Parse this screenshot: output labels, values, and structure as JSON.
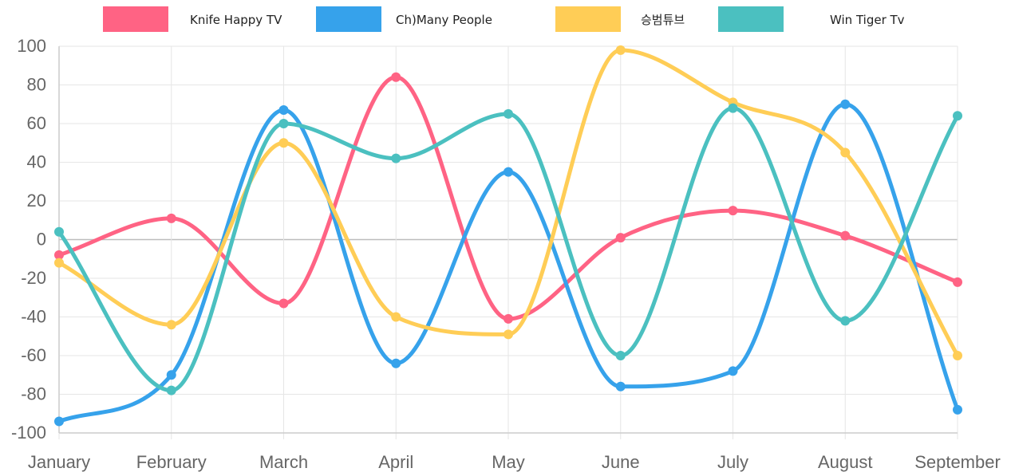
{
  "chart_data": {
    "type": "line",
    "categories": [
      "January",
      "February",
      "March",
      "April",
      "May",
      "June",
      "July",
      "August",
      "September"
    ],
    "ylim": [
      -100,
      100
    ],
    "yticks": [
      100,
      80,
      60,
      40,
      20,
      0,
      -20,
      -40,
      -60,
      -80,
      -100
    ],
    "grid": true,
    "curve": "smooth",
    "legend_position": "top",
    "series": [
      {
        "name": "Knife Happy TV",
        "color": "#ff6384",
        "values": [
          -8,
          11,
          -33,
          84,
          -41,
          1,
          15,
          2,
          -22
        ]
      },
      {
        "name": "Ch)Many People",
        "color": "#36a2eb",
        "values": [
          -94,
          -70,
          67,
          -64,
          35,
          -76,
          -68,
          70,
          -88
        ]
      },
      {
        "name": "승범튜브",
        "color": "#ffcd56",
        "values": [
          -12,
          -44,
          50,
          -40,
          -49,
          98,
          71,
          45,
          -60
        ]
      },
      {
        "name": "Win Tiger Tv",
        "color": "#4bc0c0",
        "values": [
          4,
          -78,
          60,
          42,
          65,
          -60,
          68,
          -42,
          64
        ]
      }
    ]
  }
}
